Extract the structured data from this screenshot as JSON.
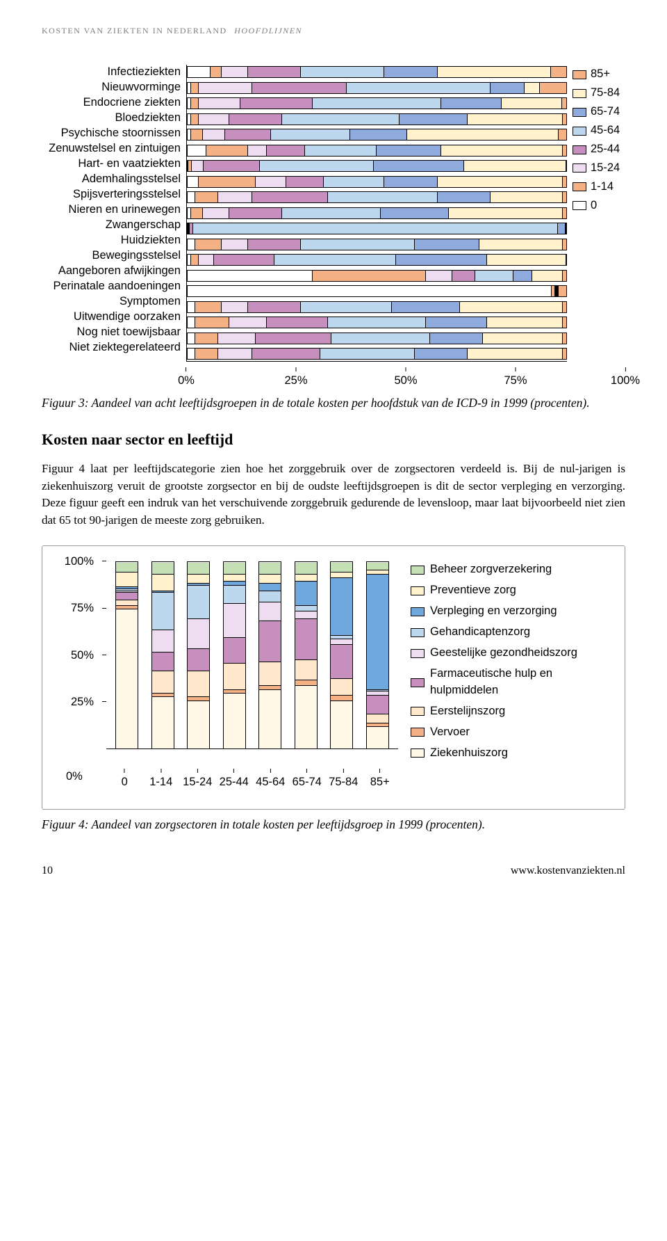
{
  "header": {
    "main": "KOSTEN VAN ZIEKTEN IN NEDERLAND",
    "sub": "HOOFDLIJNEN"
  },
  "palette": {
    "p85": "#f4b183",
    "p75_84": "#fff2cc",
    "p65_74": "#8faadc",
    "p45_64": "#bdd7ee",
    "p25_44": "#c78fbd",
    "p15_24": "#eeddf0",
    "p1_14": "#f4b183",
    "p0": "#ffffff"
  },
  "fig3": {
    "categories": [
      "Infectieziekten",
      "Nieuwvorminge",
      "Endocriene ziekten",
      "Bloedziekten",
      "Psychische stoornissen",
      "Zenuwstelsel en zintuigen",
      "Hart- en vaatziekten",
      "Ademhalingsstelsel",
      "Spijsverteringsstelsel",
      "Nieren en urinewegen",
      "Zwangerschap",
      "Huidziekten",
      "Bewegingsstelsel",
      "Aangeboren afwijkingen",
      "Perinatale aandoeningen",
      "Symptomen",
      "Uitwendige oorzaken",
      "Nog niet toewijsbaar",
      "Niet ziektegerelateerd"
    ],
    "legend": [
      "85+",
      "75-84",
      "65-74",
      "45-64",
      "25-44",
      "15-24",
      "1-14",
      "0"
    ],
    "legend_colors": [
      "p85",
      "p75_84",
      "p65_74",
      "p45_64",
      "p25_44",
      "p15_24",
      "p1_14",
      "p0"
    ],
    "xticks": [
      "0%",
      "25%",
      "50%",
      "75%",
      "100%"
    ],
    "series": [
      [
        6,
        3,
        7,
        14,
        22,
        14,
        30,
        4
      ],
      [
        1,
        2,
        14,
        25,
        38,
        9,
        4,
        7
      ],
      [
        1,
        2,
        11,
        19,
        34,
        16,
        16,
        1
      ],
      [
        1,
        2,
        8,
        14,
        31,
        18,
        25,
        1
      ],
      [
        1,
        3,
        6,
        12,
        21,
        15,
        40,
        2
      ],
      [
        5,
        11,
        5,
        10,
        19,
        17,
        32,
        1
      ],
      [
        0,
        1,
        3,
        15,
        30,
        24,
        27,
        0
      ],
      [
        3,
        15,
        8,
        10,
        16,
        14,
        33,
        1
      ],
      [
        2,
        6,
        9,
        20,
        29,
        14,
        19,
        1
      ],
      [
        1,
        3,
        7,
        14,
        26,
        18,
        30,
        1
      ],
      [
        0,
        0,
        0,
        1,
        97,
        2,
        0,
        0
      ],
      [
        2,
        7,
        7,
        14,
        30,
        17,
        22,
        1
      ],
      [
        1,
        2,
        4,
        16,
        32,
        24,
        21,
        0
      ],
      [
        33,
        30,
        7,
        6,
        10,
        5,
        8,
        1
      ],
      [
        97,
        1,
        0,
        0,
        0,
        0,
        0,
        2
      ],
      [
        2,
        7,
        7,
        14,
        24,
        18,
        27,
        1
      ],
      [
        2,
        9,
        10,
        16,
        26,
        16,
        20,
        1
      ],
      [
        2,
        6,
        10,
        20,
        26,
        14,
        21,
        1
      ],
      [
        2,
        6,
        9,
        18,
        25,
        14,
        25,
        1
      ]
    ],
    "series_colors": [
      "p0",
      "p1_14",
      "p15_24",
      "p25_44",
      "p45_64",
      "p65_74",
      "p75_84",
      "p85"
    ]
  },
  "captions": {
    "fig3": "Figuur 3: Aandeel van acht leeftijdsgroepen in de totale kosten per hoofdstuk van de ICD-9 in 1999 (procenten).",
    "fig4": "Figuur 4: Aandeel van zorgsectoren in totale kosten per leeftijdsgroep in 1999 (procenten)."
  },
  "section_heading": "Kosten naar sector en leeftijd",
  "body_para": "Figuur 4 laat per leeftijdscategorie zien hoe het zorggebruik over de zorgsectoren verdeeld is. Bij de nul-jarigen is ziekenhuiszorg veruit de grootste zorgsector en bij de oudste leeftijdsgroepen is dit de sector verpleging en verzorging. Deze figuur geeft een indruk van het verschuivende zorggebruik gedurende de levensloop, maar laat bijvoorbeeld niet zien dat 65 tot 90-jarigen de meeste zorg gebruiken.",
  "fig4": {
    "palette": {
      "beheer": "#c5e0b4",
      "prevent": "#fff2cc",
      "verpleg": "#6fa8dc",
      "gehand": "#bdd7ee",
      "geest": "#eeddf0",
      "farma": "#c78fbd",
      "eerste": "#ffe8cc",
      "vervoer": "#f4b183",
      "zhuis": "#fff8e6"
    },
    "yticks": [
      "100%",
      "75%",
      "50%",
      "25%"
    ],
    "zero_label": "0%",
    "xcats": [
      "0",
      "1-14",
      "15-24",
      "25-44",
      "45-64",
      "65-74",
      "75-84",
      "85+"
    ],
    "legend": [
      {
        "k": "beheer",
        "label": "Beheer zorgverzekering"
      },
      {
        "k": "prevent",
        "label": "Preventieve zorg"
      },
      {
        "k": "verpleg",
        "label": "Verpleging en verzorging"
      },
      {
        "k": "gehand",
        "label": "Gehandicaptenzorg"
      },
      {
        "k": "geest",
        "label": "Geestelijke gezondheidszorg"
      },
      {
        "k": "farma",
        "label": "Farmaceutische hulp en hulpmiddelen"
      },
      {
        "k": "eerste",
        "label": "Eerstelijnszorg"
      },
      {
        "k": "vervoer",
        "label": "Vervoer"
      },
      {
        "k": "zhuis",
        "label": "Ziekenhuiszorg"
      }
    ],
    "stack_order": [
      "zhuis",
      "vervoer",
      "eerste",
      "farma",
      "geest",
      "gehand",
      "verpleg",
      "prevent",
      "beheer"
    ],
    "columns": [
      {
        "zhuis": 75,
        "vervoer": 2,
        "eerste": 3,
        "farma": 4,
        "geest": 1,
        "gehand": 1,
        "verpleg": 1,
        "prevent": 8,
        "beheer": 5
      },
      {
        "zhuis": 28,
        "vervoer": 2,
        "eerste": 12,
        "farma": 10,
        "geest": 12,
        "gehand": 20,
        "verpleg": 1,
        "prevent": 9,
        "beheer": 6
      },
      {
        "zhuis": 26,
        "vervoer": 2,
        "eerste": 14,
        "farma": 12,
        "geest": 16,
        "gehand": 18,
        "verpleg": 1,
        "prevent": 5,
        "beheer": 6
      },
      {
        "zhuis": 30,
        "vervoer": 2,
        "eerste": 14,
        "farma": 14,
        "geest": 18,
        "gehand": 10,
        "verpleg": 2,
        "prevent": 4,
        "beheer": 6
      },
      {
        "zhuis": 32,
        "vervoer": 2,
        "eerste": 13,
        "farma": 22,
        "geest": 10,
        "gehand": 6,
        "verpleg": 4,
        "prevent": 5,
        "beheer": 6
      },
      {
        "zhuis": 34,
        "vervoer": 3,
        "eerste": 11,
        "farma": 22,
        "geest": 4,
        "gehand": 3,
        "verpleg": 13,
        "prevent": 4,
        "beheer": 6
      },
      {
        "zhuis": 26,
        "vervoer": 3,
        "eerste": 9,
        "farma": 18,
        "geest": 3,
        "gehand": 2,
        "verpleg": 31,
        "prevent": 3,
        "beheer": 5
      },
      {
        "zhuis": 12,
        "vervoer": 2,
        "eerste": 5,
        "farma": 10,
        "geest": 2,
        "gehand": 1,
        "verpleg": 62,
        "prevent": 2,
        "beheer": 4
      }
    ]
  },
  "footer": {
    "page": "10",
    "url": "www.kostenvanziekten.nl"
  }
}
